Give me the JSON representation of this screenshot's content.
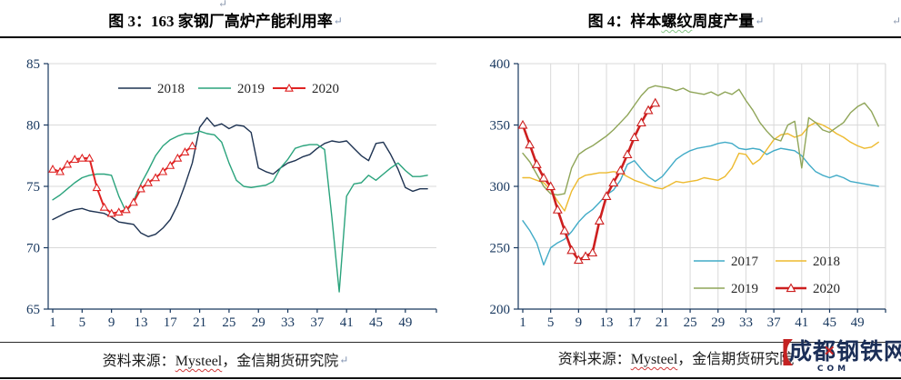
{
  "figures": {
    "left": {
      "title": "图 3：163 家钢厂高炉产能利用率",
      "source_prefix": "资料来源：",
      "source_vendor": "Mysteel",
      "source_suffix": "，金信期货研究院"
    },
    "right": {
      "title_prefix": "图 4：样本",
      "title_wavy": "螺纹",
      "title_suffix": "周度产量",
      "source_prefix": "资料来源：",
      "source_vendor": "Mysteel",
      "source_suffix": "，金信期货研究院"
    }
  },
  "marks": {
    "pilcrow": "↵"
  },
  "watermark": {
    "logo": "【",
    "text": "成都钢铁网",
    "x_mark": "✕",
    "sub": "COM"
  },
  "colors": {
    "axis": "#17375e",
    "grid": "#d9d9d9",
    "legend_text": "#262626"
  },
  "chart_data": [
    {
      "type": "line",
      "title": "图 3：163 家钢厂高炉产能利用率",
      "xlabel": "",
      "ylabel": "",
      "x_ticks": [
        1,
        5,
        9,
        13,
        17,
        21,
        25,
        29,
        33,
        37,
        41,
        45,
        49
      ],
      "ylim": [
        65,
        85
      ],
      "yticks": [
        65,
        70,
        75,
        80,
        85
      ],
      "grid": {
        "horizontal": true,
        "vertical": false
      },
      "legend_position": "top-center",
      "series": [
        {
          "name": "2018",
          "color": "#1e3352",
          "width": 1.4,
          "marker": "none",
          "values": [
            72.3,
            72.6,
            72.9,
            73.1,
            73.2,
            73.0,
            72.9,
            72.8,
            72.5,
            72.1,
            72.0,
            71.9,
            71.2,
            70.9,
            71.1,
            71.6,
            72.3,
            73.5,
            75.1,
            76.9,
            79.8,
            80.6,
            79.9,
            80.1,
            79.7,
            80.0,
            79.9,
            79.4,
            76.5,
            76.2,
            76.0,
            76.5,
            76.9,
            77.1,
            77.4,
            77.6,
            78.1,
            78.5,
            78.7,
            78.6,
            78.7,
            78.1,
            77.5,
            77.1,
            78.5,
            78.6,
            77.6,
            76.4,
            74.9,
            74.6,
            74.8,
            74.8
          ]
        },
        {
          "name": "2019",
          "color": "#2aa37c",
          "width": 1.4,
          "marker": "none",
          "values": [
            73.9,
            74.3,
            74.8,
            75.3,
            75.7,
            75.9,
            76.0,
            76.0,
            75.9,
            74.2,
            72.9,
            73.8,
            75.2,
            76.3,
            77.5,
            78.3,
            78.8,
            79.1,
            79.3,
            79.3,
            79.5,
            79.3,
            79.2,
            78.6,
            76.9,
            75.5,
            75.0,
            74.9,
            75.0,
            75.1,
            75.4,
            76.5,
            77.2,
            78.1,
            78.3,
            78.4,
            78.4,
            78.0,
            72.5,
            66.4,
            74.2,
            75.2,
            75.3,
            75.9,
            75.5,
            76.0,
            76.5,
            76.9,
            76.3,
            75.8,
            75.8,
            75.9
          ]
        },
        {
          "name": "2020",
          "color": "#df2323",
          "width": 2.0,
          "marker": "triangle",
          "values": [
            76.4,
            76.2,
            76.8,
            77.2,
            77.3,
            77.3,
            74.9,
            73.3,
            72.8,
            72.9,
            73.1,
            73.7,
            74.8,
            75.3,
            75.7,
            76.2,
            76.7,
            77.3,
            77.8,
            78.3
          ]
        }
      ]
    },
    {
      "type": "line",
      "title": "图 4：样本螺纹周度产量",
      "xlabel": "",
      "ylabel": "",
      "x_ticks": [
        1,
        5,
        9,
        13,
        17,
        21,
        25,
        29,
        33,
        37,
        41,
        45,
        49
      ],
      "ylim": [
        200,
        400
      ],
      "yticks": [
        200,
        250,
        300,
        350,
        400
      ],
      "grid": {
        "horizontal": true,
        "vertical": true
      },
      "legend_position": "bottom-right",
      "series": [
        {
          "name": "2017",
          "color": "#41abc7",
          "width": 1.4,
          "marker": "none",
          "values": [
            272,
            264,
            254,
            236,
            250,
            254,
            257,
            263,
            271,
            277,
            281,
            287,
            293,
            297,
            305,
            318,
            321,
            314,
            308,
            304,
            308,
            315,
            322,
            326,
            329,
            331,
            332,
            333,
            335,
            336,
            335,
            331,
            330,
            331,
            330,
            326,
            329,
            331,
            330,
            329,
            325,
            318,
            312,
            309,
            307,
            309,
            307,
            304,
            303,
            302,
            301,
            300
          ]
        },
        {
          "name": "2018",
          "color": "#edba2f",
          "width": 1.4,
          "marker": "none",
          "values": [
            307,
            307,
            305,
            303,
            297,
            288,
            280,
            296,
            306,
            309,
            310,
            311,
            311,
            312,
            311,
            308,
            305,
            303,
            301,
            299,
            298,
            301,
            304,
            303,
            304,
            305,
            307,
            306,
            305,
            308,
            315,
            327,
            326,
            318,
            322,
            330,
            338,
            342,
            343,
            340,
            342,
            349,
            352,
            350,
            347,
            343,
            340,
            336,
            333,
            331,
            332,
            336
          ]
        },
        {
          "name": "2019",
          "color": "#8fa558",
          "width": 1.4,
          "marker": "none",
          "values": [
            327,
            320,
            310,
            300,
            294,
            293,
            294,
            315,
            326,
            330,
            333,
            337,
            341,
            346,
            352,
            358,
            366,
            374,
            380,
            382,
            381,
            380,
            378,
            380,
            377,
            376,
            375,
            377,
            374,
            377,
            375,
            379,
            370,
            362,
            352,
            345,
            339,
            337,
            350,
            353,
            315,
            356,
            352,
            346,
            344,
            348,
            352,
            360,
            365,
            368,
            361,
            349
          ]
        },
        {
          "name": "2020",
          "color": "#cd1f1f",
          "width": 2.6,
          "marker": "triangle",
          "values": [
            350,
            334,
            318,
            307,
            300,
            281,
            264,
            248,
            240,
            243,
            246,
            272,
            292,
            303,
            313,
            326,
            340,
            352,
            362,
            368
          ]
        }
      ]
    }
  ]
}
